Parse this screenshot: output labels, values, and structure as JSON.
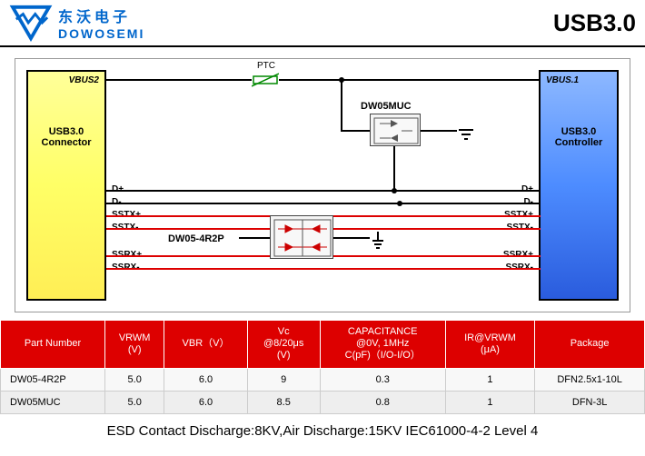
{
  "header": {
    "logo_cn": "东沃电子",
    "logo_en": "DOWOSEMI",
    "title": "USB3.0",
    "logo_color": "#0066cc"
  },
  "schematic": {
    "ptc_label": "PTC",
    "left_box": {
      "title": "USB3.0\nConnector",
      "vbus": "VBUS2"
    },
    "right_box": {
      "title": "USB3.0\nController",
      "vbus": "VBUS.1"
    },
    "chip1_label": "DW05MUC",
    "chip2_label": "DW05-4R2P",
    "signals_left": [
      "D+",
      "D-",
      "SSTX+",
      "SSTX-",
      "SSRX+",
      "SSRX-"
    ],
    "signals_right": [
      "D+",
      "D-",
      "SSTX+",
      "SSTX-",
      "SSRX+",
      "SSRX-"
    ],
    "colors": {
      "black_wire": "#000000",
      "red_wire": "#dd0000",
      "left_box_fill": "#ffff77",
      "right_box_fill": "#4d8cff"
    }
  },
  "table": {
    "headers": [
      "Part Number",
      "VRWM\n(V)",
      "VBR（V）",
      "Vc\n@8/20μs\n(V)",
      "CAPACITANCE\n@0V, 1MHz\nC(pF)（I/O-I/O）",
      "IR@VRWM\n(μA)",
      "Package"
    ],
    "rows": [
      [
        "DW05-4R2P",
        "5.0",
        "6.0",
        "9",
        "0.3",
        "1",
        "DFN2.5x1-10L"
      ],
      [
        "DW05MUC",
        "5.0",
        "6.0",
        "8.5",
        "0.8",
        "1",
        "DFN-3L"
      ]
    ],
    "header_bg": "#dd0000",
    "header_fg": "#ffffff"
  },
  "footer": "ESD Contact Discharge:8KV,Air Discharge:15KV  IEC61000-4-2 Level 4"
}
